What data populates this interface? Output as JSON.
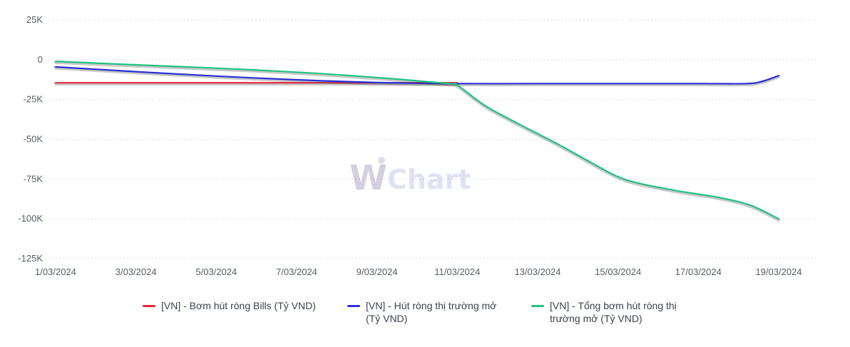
{
  "chart_data": {
    "type": "line",
    "title": "",
    "xlabel": "",
    "ylabel": "",
    "ylim": [
      -125000,
      25000
    ],
    "y_ticks": [
      25000,
      0,
      -25000,
      -50000,
      -75000,
      -100000,
      -125000
    ],
    "y_tick_labels": [
      "25K",
      "0",
      "-25K",
      "-50K",
      "-75K",
      "-100K",
      "-125K"
    ],
    "x_tick_labels": [
      "1/03/2024",
      "3/03/2024",
      "5/03/2024",
      "7/03/2024",
      "9/03/2024",
      "11/03/2024",
      "13/03/2024",
      "15/03/2024",
      "17/03/2024",
      "19/03/2024"
    ],
    "x_days": [
      1,
      19
    ],
    "grid": true,
    "legend_position": "bottom",
    "series": [
      {
        "name": "[VN] - Bơm hút ròng Bills (Tỷ VND)",
        "name_lines": [
          "[VN] - Bơm hút ròng Bills (Tỷ VND)"
        ],
        "color": "#e0253b",
        "points": [
          [
            1,
            -14500
          ],
          [
            11,
            -14500
          ]
        ]
      },
      {
        "name": "[VN] - Hút ròng thị trường mở (Tỷ VND)",
        "name_lines": [
          "[VN] - Hút ròng thị trường mở",
          "(Tỷ VND)"
        ],
        "color": "#2b2fd6",
        "points": [
          [
            1,
            -4500
          ],
          [
            3,
            -7500
          ],
          [
            5,
            -10300
          ],
          [
            7,
            -12600
          ],
          [
            9,
            -14300
          ],
          [
            11,
            -15000
          ],
          [
            13,
            -15000
          ],
          [
            15,
            -15000
          ],
          [
            17,
            -15000
          ],
          [
            18.2,
            -15000
          ],
          [
            18.6,
            -13500
          ],
          [
            19,
            -10000
          ]
        ]
      },
      {
        "name": "[VN] - Tổng bơm hút ròng thị trường mở (Tỷ VND)",
        "name_lines": [
          "[VN] - Tổng bơm hút ròng thị",
          "trường mở (Tỷ VND)"
        ],
        "color": "#1fc283",
        "points": [
          [
            1,
            -1000
          ],
          [
            3,
            -3200
          ],
          [
            5,
            -5300
          ],
          [
            7,
            -7800
          ],
          [
            9,
            -11200
          ],
          [
            10.8,
            -15000
          ],
          [
            11,
            -16000
          ],
          [
            11.7,
            -29000
          ],
          [
            12.5,
            -40000
          ],
          [
            13.5,
            -53000
          ],
          [
            14.5,
            -67000
          ],
          [
            15,
            -73500
          ],
          [
            15.5,
            -77500
          ],
          [
            16.5,
            -82500
          ],
          [
            17.5,
            -86500
          ],
          [
            18.3,
            -91500
          ],
          [
            19,
            -100000
          ]
        ]
      }
    ],
    "watermark": {
      "mark": "W",
      "text": "Chart"
    }
  }
}
